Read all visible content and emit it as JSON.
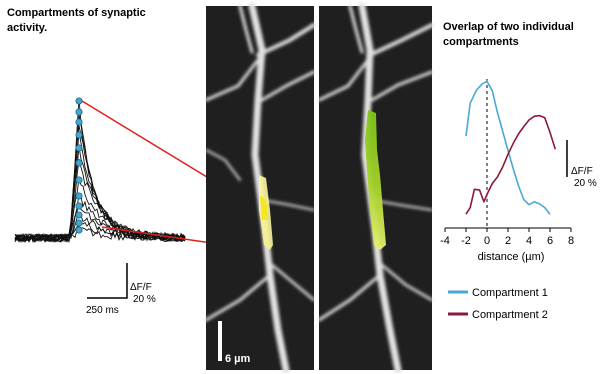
{
  "left_panel": {
    "title_line1": "Compartments of synaptic",
    "title_line2": "activity.",
    "scale_y_label": "ΔF/F",
    "scale_y_value": "20 %",
    "scale_x_label": "250 ms"
  },
  "micrograph": {
    "scale_label": "6 µm"
  },
  "right_panel": {
    "title_line1": "Overlap of two individual",
    "title_line2": "compartments",
    "scale_y_label": "ΔF/F",
    "scale_y_value": "20 %"
  },
  "chart_data": {
    "type": "line",
    "title": "Overlap of two individual compartments",
    "xlabel": "distance (µm)",
    "ylabel": "",
    "xlim": [
      -4,
      8
    ],
    "xticks": [
      "-4",
      "-2",
      "0",
      "2",
      "4",
      "6",
      "8"
    ],
    "x_zero_line": "dashed",
    "series": [
      {
        "name": "Compartment 1",
        "color": "#4aa8d8",
        "x": [
          -2.0,
          -1.6,
          -1.0,
          -0.5,
          0.0,
          0.5,
          1.0,
          1.5,
          2.0,
          2.5,
          3.0,
          3.5,
          4.0,
          4.5,
          5.0,
          5.5,
          6.0
        ],
        "y": [
          1.0,
          1.45,
          1.63,
          1.71,
          1.75,
          1.62,
          1.32,
          1.06,
          0.8,
          0.55,
          0.32,
          0.13,
          0.06,
          0.1,
          0.07,
          0.02,
          -0.07
        ]
      },
      {
        "name": "Compartment 2",
        "color": "#8b1a3a",
        "x": [
          -2.0,
          -1.6,
          -1.2,
          -0.7,
          -0.3,
          0.0,
          0.5,
          1.0,
          1.5,
          2.0,
          2.5,
          3.0,
          3.5,
          4.0,
          4.5,
          5.0,
          5.5,
          6.0,
          6.5
        ],
        "y": [
          -0.07,
          0.02,
          0.27,
          0.26,
          0.1,
          0.2,
          0.35,
          0.44,
          0.58,
          0.75,
          0.9,
          1.03,
          1.13,
          1.22,
          1.27,
          1.28,
          1.25,
          1.05,
          0.82
        ]
      }
    ]
  }
}
